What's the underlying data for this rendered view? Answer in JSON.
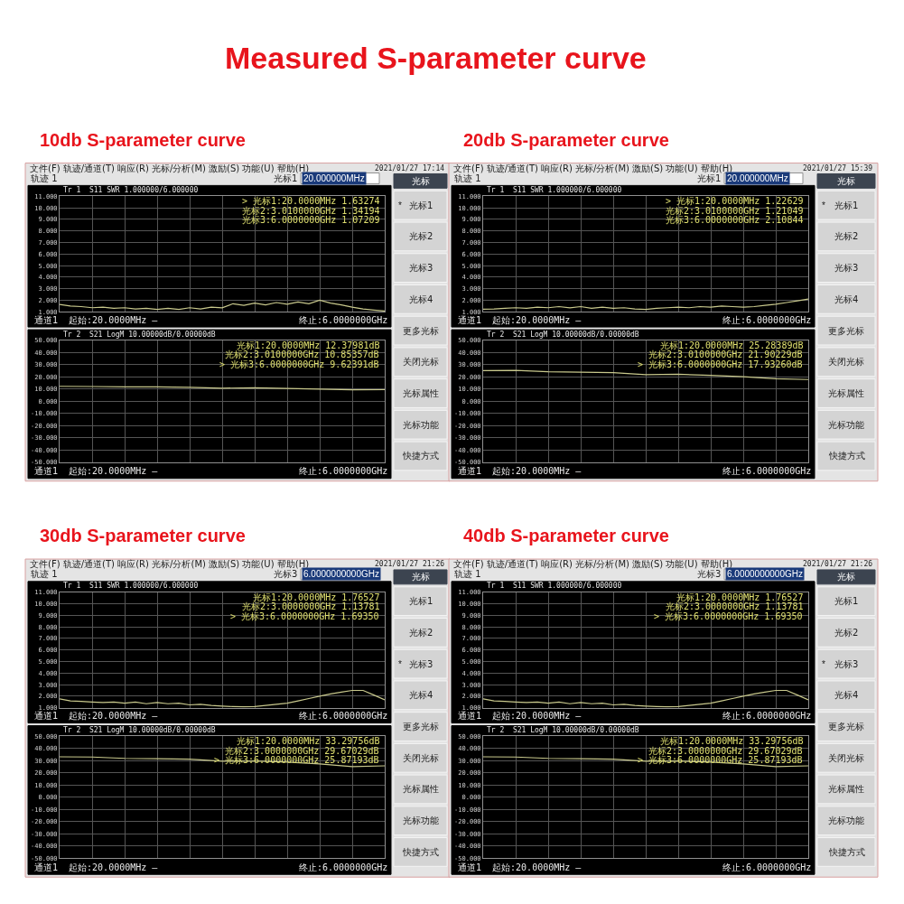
{
  "chart_data": [
    {
      "type": "other",
      "title": "Measured S-parameter curve"
    },
    {
      "type": "other",
      "title": "10db S-parameter curve",
      "annotations": [
        "文件(F) 轨迹/通道(T) 响应(R) 光标/分析(M) 激励(S) 功能(U) 帮助(H)",
        "2021/01/27 17:14",
        "轨迹 1",
        "光标1",
        "20.000000MHz",
        "光标",
        "*",
        "光标1",
        "光标2",
        "光标3",
        "光标4",
        "更多光标",
        "关闭光标",
        "光标属性",
        "光标功能",
        "快捷方式"
      ]
    },
    {
      "type": "line",
      "annotations": [
        "Tr 1  S11 SWR 1.000000/6.000000",
        "> 光标1:20.0000MHz 1.63274",
        "光标2:3.0100000GHz 1.34194",
        "光标3:6.0000000GHz 1.07209",
        "通道1  起始:20.0000MHz —",
        "终止:6.0000000GHz"
      ],
      "categories": [
        null,
        null,
        null,
        null,
        null,
        null,
        null,
        null,
        null,
        null,
        null,
        null,
        null,
        null,
        null,
        null,
        null,
        null,
        null,
        null,
        null,
        null,
        null,
        null,
        null,
        null,
        null,
        null,
        null,
        null,
        null
      ],
      "ylim": [
        1,
        11
      ],
      "yticks": [
        {
          "value": 1,
          "label": "1.000"
        },
        {
          "value": 2,
          "label": "2.000"
        },
        {
          "value": 3,
          "label": "3.000"
        },
        {
          "value": 4,
          "label": "4.000"
        },
        {
          "value": 5,
          "label": "5.000"
        },
        {
          "value": 6,
          "label": "6.000"
        },
        {
          "value": 7,
          "label": "7.000"
        },
        {
          "value": 8,
          "label": "8.000"
        },
        {
          "value": 9,
          "label": "9.000"
        },
        {
          "value": 10,
          "label": "10.000"
        },
        {
          "value": 11,
          "label": "11.000"
        }
      ],
      "tick_labels": "y",
      "grid": true,
      "series": [
        {
          "color": "#c8c88c",
          "values": [
            1.63,
            1.5,
            1.45,
            1.35,
            1.4,
            1.3,
            1.35,
            1.25,
            1.3,
            1.2,
            1.3,
            1.2,
            1.35,
            1.25,
            1.4,
            1.34,
            1.7,
            1.55,
            1.75,
            1.6,
            1.8,
            1.65,
            1.85,
            1.7,
            2.0,
            1.75,
            1.6,
            1.4,
            1.25,
            1.15,
            1.07
          ]
        }
      ]
    },
    {
      "type": "line",
      "annotations": [
        "Tr 2  S21 LogM 10.00000dB/0.00000dB",
        "光标1:20.0000MHz 12.37981dB",
        "光标2:3.0100000GHz 10.85357dB",
        "> 光标3:6.0000000GHz 9.62391dB",
        "通道1  起始:20.0000MHz —",
        "终止:6.0000000GHz"
      ],
      "categories": [
        null,
        null,
        null,
        null,
        null,
        null,
        null,
        null,
        null,
        null,
        null
      ],
      "ylim": [
        -50,
        50
      ],
      "yticks": [
        {
          "value": -50,
          "label": "-50.000"
        },
        {
          "value": -40,
          "label": "-40.000"
        },
        {
          "value": -30,
          "label": "-30.000"
        },
        {
          "value": -20,
          "label": "-20.000"
        },
        {
          "value": -10,
          "label": "-10.000"
        },
        {
          "value": 0,
          "label": "0.000"
        },
        {
          "value": 10,
          "label": "10.000"
        },
        {
          "value": 20,
          "label": "20.000"
        },
        {
          "value": 30,
          "label": "30.000"
        },
        {
          "value": 40,
          "label": "40.000"
        },
        {
          "value": 50,
          "label": "50.000"
        }
      ],
      "tick_labels": "y",
      "grid": true,
      "series": [
        {
          "color": "#c8c88c",
          "values": [
            12.38,
            12.2,
            11.9,
            11.9,
            11.6,
            10.85,
            11.1,
            10.6,
            10.1,
            9.5,
            9.62
          ]
        }
      ]
    },
    {
      "type": "other",
      "title": "20db S-parameter curve",
      "annotations": [
        "文件(F) 轨迹/通道(T) 响应(R) 光标/分析(M) 激励(S) 功能(U) 帮助(H)",
        "2021/01/27 15:39",
        "轨迹 1",
        "光标1",
        "20.000000MHz",
        "光标",
        "*",
        "光标1",
        "光标2",
        "光标3",
        "光标4",
        "更多光标",
        "关闭光标",
        "光标属性",
        "光标功能",
        "快捷方式"
      ]
    },
    {
      "type": "line",
      "annotations": [
        "Tr 1  S11 SWR 1.000000/6.000000",
        "> 光标1:20.0000MHz 1.22629",
        "光标2:3.0100000GHz 1.21049",
        "光标3:6.0000000GHz 2.10844",
        "通道1  起始:20.0000MHz —",
        "终止:6.0000000GHz"
      ],
      "categories": [
        null,
        null,
        null,
        null,
        null,
        null,
        null,
        null,
        null,
        null,
        null,
        null,
        null,
        null,
        null,
        null,
        null,
        null,
        null,
        null,
        null,
        null,
        null,
        null,
        null,
        null,
        null,
        null,
        null,
        null,
        null
      ],
      "ylim": [
        1,
        11
      ],
      "yticks": [
        {
          "value": 1,
          "label": "1.000"
        },
        {
          "value": 2,
          "label": "2.000"
        },
        {
          "value": 3,
          "label": "3.000"
        },
        {
          "value": 4,
          "label": "4.000"
        },
        {
          "value": 5,
          "label": "5.000"
        },
        {
          "value": 6,
          "label": "6.000"
        },
        {
          "value": 7,
          "label": "7.000"
        },
        {
          "value": 8,
          "label": "8.000"
        },
        {
          "value": 9,
          "label": "9.000"
        },
        {
          "value": 10,
          "label": "10.000"
        },
        {
          "value": 11,
          "label": "11.000"
        }
      ],
      "tick_labels": "y",
      "grid": true,
      "series": [
        {
          "color": "#c8c88c",
          "values": [
            1.23,
            1.25,
            1.3,
            1.35,
            1.3,
            1.4,
            1.35,
            1.45,
            1.35,
            1.45,
            1.3,
            1.4,
            1.3,
            1.35,
            1.25,
            1.21,
            1.3,
            1.35,
            1.4,
            1.35,
            1.45,
            1.4,
            1.5,
            1.45,
            1.4,
            1.45,
            1.55,
            1.65,
            1.8,
            1.95,
            2.11
          ]
        }
      ]
    },
    {
      "type": "line",
      "annotations": [
        "Tr 2  S21 LogM 10.00000dB/0.00000dB",
        "光标1:20.0000MHz 25.28389dB",
        "光标2:3.0100000GHz 21.90229dB",
        "> 光标3:6.0000000GHz 17.93260dB",
        "通道1  起始:20.0000MHz —",
        "终止:6.0000000GHz"
      ],
      "categories": [
        null,
        null,
        null,
        null,
        null,
        null,
        null,
        null,
        null,
        null,
        null
      ],
      "ylim": [
        -50,
        50
      ],
      "yticks": [
        {
          "value": -50,
          "label": "-50.000"
        },
        {
          "value": -40,
          "label": "-40.000"
        },
        {
          "value": -30,
          "label": "-30.000"
        },
        {
          "value": -20,
          "label": "-20.000"
        },
        {
          "value": -10,
          "label": "-10.000"
        },
        {
          "value": 0,
          "label": "0.000"
        },
        {
          "value": 10,
          "label": "10.000"
        },
        {
          "value": 20,
          "label": "20.000"
        },
        {
          "value": 30,
          "label": "30.000"
        },
        {
          "value": 40,
          "label": "40.000"
        },
        {
          "value": 50,
          "label": "50.000"
        }
      ],
      "tick_labels": "y",
      "grid": true,
      "series": [
        {
          "color": "#c8c88c",
          "values": [
            25.28,
            25.5,
            24.3,
            24,
            23.6,
            21.9,
            22.3,
            21.3,
            20.2,
            18.6,
            17.93
          ]
        }
      ]
    },
    {
      "type": "other",
      "title": "30db S-parameter curve",
      "annotations": [
        "文件(F) 轨迹/通道(T) 响应(R) 光标/分析(M) 激励(S) 功能(U) 帮助(H)",
        "2021/01/27 21:26",
        "轨迹 1",
        "光标3",
        "6.0000000000GHz",
        "光标",
        "光标1",
        "光标2",
        "*",
        "光标3",
        "光标4",
        "更多光标",
        "关闭光标",
        "光标属性",
        "光标功能",
        "快捷方式"
      ]
    },
    {
      "type": "line",
      "annotations": [
        "Tr 1  S11 SWR 1.000000/6.000000",
        "光标1:20.0000MHz 1.76527",
        "光标2:3.0000000GHz 1.13781",
        "> 光标3:6.0000000GHz 1.69350",
        "通道1  起始:20.0000MHz —",
        "终止:6.0000000GHz"
      ],
      "categories": [
        null,
        null,
        null,
        null,
        null,
        null,
        null,
        null,
        null,
        null,
        null,
        null,
        null,
        null,
        null,
        null,
        null,
        null,
        null,
        null,
        null,
        null,
        null,
        null,
        null,
        null,
        null,
        null,
        null,
        null,
        null
      ],
      "ylim": [
        1,
        11
      ],
      "yticks": [
        {
          "value": 1,
          "label": "1.000"
        },
        {
          "value": 2,
          "label": "2.000"
        },
        {
          "value": 3,
          "label": "3.000"
        },
        {
          "value": 4,
          "label": "4.000"
        },
        {
          "value": 5,
          "label": "5.000"
        },
        {
          "value": 6,
          "label": "6.000"
        },
        {
          "value": 7,
          "label": "7.000"
        },
        {
          "value": 8,
          "label": "8.000"
        },
        {
          "value": 9,
          "label": "9.000"
        },
        {
          "value": 10,
          "label": "10.000"
        },
        {
          "value": 11,
          "label": "11.000"
        }
      ],
      "tick_labels": "y",
      "grid": true,
      "series": [
        {
          "color": "#c8c88c",
          "values": [
            1.77,
            1.6,
            1.55,
            1.5,
            1.45,
            1.5,
            1.4,
            1.5,
            1.35,
            1.45,
            1.35,
            1.4,
            1.25,
            1.3,
            1.2,
            1.14,
            1.1,
            1.08,
            1.1,
            1.2,
            1.3,
            1.4,
            1.6,
            1.8,
            2.0,
            2.2,
            2.35,
            2.5,
            2.5,
            2.1,
            1.69
          ]
        }
      ]
    },
    {
      "type": "line",
      "annotations": [
        "Tr 2  S21 LogM 10.00000dB/0.00000dB",
        "光标1:20.0000MHz 33.29756dB",
        "光标2:3.0000000GHz 29.67029dB",
        "> 光标3:6.0000000GHz 25.87193dB",
        "通道1  起始:20.0000MHz —",
        "终止:6.0000000GHz"
      ],
      "categories": [
        null,
        null,
        null,
        null,
        null,
        null,
        null,
        null,
        null,
        null,
        null
      ],
      "ylim": [
        -50,
        50
      ],
      "yticks": [
        {
          "value": -50,
          "label": "-50.000"
        },
        {
          "value": -40,
          "label": "-40.000"
        },
        {
          "value": -30,
          "label": "-30.000"
        },
        {
          "value": -20,
          "label": "-20.000"
        },
        {
          "value": -10,
          "label": "-10.000"
        },
        {
          "value": 0,
          "label": "0.000"
        },
        {
          "value": 10,
          "label": "10.000"
        },
        {
          "value": 20,
          "label": "20.000"
        },
        {
          "value": 30,
          "label": "30.000"
        },
        {
          "value": 40,
          "label": "40.000"
        },
        {
          "value": 50,
          "label": "50.000"
        }
      ],
      "tick_labels": "y",
      "grid": true,
      "series": [
        {
          "color": "#c8c88c",
          "values": [
            33.3,
            33.1,
            32,
            31.7,
            31.3,
            29.67,
            29.8,
            29,
            27.5,
            25.2,
            25.87
          ]
        }
      ]
    },
    {
      "type": "other",
      "title": "40db S-parameter curve",
      "annotations": [
        "文件(F) 轨迹/通道(T) 响应(R) 光标/分析(M) 激励(S) 功能(U) 帮助(H)",
        "2021/01/27 21:26",
        "轨迹 1",
        "光标3",
        "6.0000000000GHz",
        "光标",
        "光标1",
        "光标2",
        "*",
        "光标3",
        "光标4",
        "更多光标",
        "关闭光标",
        "光标属性",
        "光标功能",
        "快捷方式"
      ]
    },
    {
      "type": "line",
      "annotations": [
        "Tr 1  S11 SWR 1.000000/6.000000",
        "光标1:20.0000MHz 1.76527",
        "光标2:3.0000000GHz 1.13781",
        "> 光标3:6.0000000GHz 1.69350",
        "通道1  起始:20.0000MHz —",
        "终止:6.0000000GHz"
      ],
      "categories": [
        null,
        null,
        null,
        null,
        null,
        null,
        null,
        null,
        null,
        null,
        null,
        null,
        null,
        null,
        null,
        null,
        null,
        null,
        null,
        null,
        null,
        null,
        null,
        null,
        null,
        null,
        null,
        null,
        null,
        null,
        null
      ],
      "ylim": [
        1,
        11
      ],
      "yticks": [
        {
          "value": 1,
          "label": "1.000"
        },
        {
          "value": 2,
          "label": "2.000"
        },
        {
          "value": 3,
          "label": "3.000"
        },
        {
          "value": 4,
          "label": "4.000"
        },
        {
          "value": 5,
          "label": "5.000"
        },
        {
          "value": 6,
          "label": "6.000"
        },
        {
          "value": 7,
          "label": "7.000"
        },
        {
          "value": 8,
          "label": "8.000"
        },
        {
          "value": 9,
          "label": "9.000"
        },
        {
          "value": 10,
          "label": "10.000"
        },
        {
          "value": 11,
          "label": "11.000"
        }
      ],
      "tick_labels": "y",
      "grid": true,
      "series": [
        {
          "color": "#c8c88c",
          "values": [
            1.77,
            1.6,
            1.55,
            1.5,
            1.45,
            1.5,
            1.4,
            1.5,
            1.35,
            1.45,
            1.35,
            1.4,
            1.25,
            1.3,
            1.2,
            1.14,
            1.1,
            1.08,
            1.1,
            1.2,
            1.3,
            1.4,
            1.6,
            1.8,
            2.0,
            2.2,
            2.35,
            2.5,
            2.5,
            2.1,
            1.69
          ]
        }
      ]
    },
    {
      "type": "line",
      "annotations": [
        "Tr 2  S21 LogM 10.00000dB/0.00000dB",
        "光标1:20.0000MHz 33.29756dB",
        "光标2:3.0000000GHz 29.67029dB",
        "> 光标3:6.0000000GHz 25.87193dB",
        "通道1  起始:20.0000MHz —",
        "终止:6.0000000GHz"
      ],
      "categories": [
        null,
        null,
        null,
        null,
        null,
        null,
        null,
        null,
        null,
        null,
        null
      ],
      "ylim": [
        -50,
        50
      ],
      "yticks": [
        {
          "value": -50,
          "label": "-50.000"
        },
        {
          "value": -40,
          "label": "-40.000"
        },
        {
          "value": -30,
          "label": "-30.000"
        },
        {
          "value": -20,
          "label": "-20.000"
        },
        {
          "value": -10,
          "label": "-10.000"
        },
        {
          "value": 0,
          "label": "0.000"
        },
        {
          "value": 10,
          "label": "10.000"
        },
        {
          "value": 20,
          "label": "20.000"
        },
        {
          "value": 30,
          "label": "30.000"
        },
        {
          "value": 40,
          "label": "40.000"
        },
        {
          "value": 50,
          "label": "50.000"
        }
      ],
      "tick_labels": "y",
      "grid": true,
      "series": [
        {
          "color": "#c8c88c",
          "values": [
            33.3,
            33.1,
            32,
            31.7,
            31.3,
            29.67,
            29.8,
            29,
            27.5,
            25.2,
            25.87
          ]
        }
      ]
    }
  ]
}
